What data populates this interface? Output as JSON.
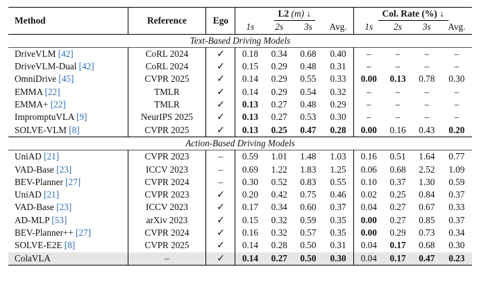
{
  "header": {
    "method": "Method",
    "reference": "Reference",
    "ego": "Ego",
    "l2_label": "L2",
    "l2_unit": "(m)",
    "col_label": "Col. Rate (%)",
    "down_arrow": "↓",
    "sub": [
      "1s",
      "2s",
      "3s",
      "Avg.",
      "1s",
      "2s",
      "3s",
      "Avg."
    ]
  },
  "sections": [
    {
      "title": "Text-Based Driving Models",
      "rows": [
        {
          "method": "DriveVLM",
          "cite": "[42]",
          "ref": "CoRL 2024",
          "ego": "✓",
          "vals": [
            "0.18",
            "0.34",
            "0.68",
            "0.40",
            "–",
            "–",
            "–",
            "–"
          ],
          "bold": []
        },
        {
          "method": "DriveVLM-Dual",
          "cite": "[42]",
          "ref": "CoRL 2024",
          "ego": "✓",
          "vals": [
            "0.15",
            "0.29",
            "0.48",
            "0.31",
            "–",
            "–",
            "–",
            "–"
          ],
          "bold": []
        },
        {
          "method": "OmniDrive",
          "cite": "[45]",
          "ref": "CVPR 2025",
          "ego": "✓",
          "vals": [
            "0.14",
            "0.29",
            "0.55",
            "0.33",
            "0.00",
            "0.13",
            "0.78",
            "0.30"
          ],
          "bold": [
            4,
            5
          ]
        },
        {
          "method": "EMMA",
          "cite": "[22]",
          "ref": "TMLR",
          "ego": "✓",
          "vals": [
            "0.14",
            "0.29",
            "0.54",
            "0.32",
            "–",
            "–",
            "–",
            "–"
          ],
          "bold": []
        },
        {
          "method": "EMMA+",
          "cite": "[22]",
          "ref": "TMLR",
          "ego": "✓",
          "vals": [
            "0.13",
            "0.27",
            "0.48",
            "0.29",
            "–",
            "–",
            "–",
            "–"
          ],
          "bold": [
            0
          ]
        },
        {
          "method": "ImpromptuVLA",
          "cite": "[9]",
          "ref": "NeurIPS 2025",
          "ego": "✓",
          "vals": [
            "0.13",
            "0.27",
            "0.53",
            "0.30",
            "–",
            "–",
            "–",
            "–"
          ],
          "bold": [
            0
          ]
        },
        {
          "method": "SOLVE-VLM",
          "cite": "[8]",
          "ref": "CVPR 2025",
          "ego": "✓",
          "vals": [
            "0.13",
            "0.25",
            "0.47",
            "0.28",
            "0.00",
            "0.16",
            "0.43",
            "0.20"
          ],
          "bold": [
            0,
            1,
            2,
            3,
            4,
            7
          ]
        }
      ]
    },
    {
      "title": "Action-Based Driving Models",
      "rows": [
        {
          "method": "UniAD",
          "cite": "[21]",
          "ref": "CVPR 2023",
          "ego": "–",
          "vals": [
            "0.59",
            "1.01",
            "1.48",
            "1.03",
            "0.16",
            "0.51",
            "1.64",
            "0.77"
          ],
          "bold": []
        },
        {
          "method": "VAD-Base",
          "cite": "[23]",
          "ref": "ICCV 2023",
          "ego": "–",
          "vals": [
            "0.69",
            "1.22",
            "1.83",
            "1.25",
            "0.06",
            "0.68",
            "2.52",
            "1.09"
          ],
          "bold": []
        },
        {
          "method": "BEV-Planner",
          "cite": "[27]",
          "ref": "CVPR 2024",
          "ego": "–",
          "vals": [
            "0.30",
            "0.52",
            "0.83",
            "0.55",
            "0.10",
            "0.37",
            "1.30",
            "0.59"
          ],
          "bold": []
        },
        {
          "method": "UniAD",
          "cite": "[21]",
          "ref": "CVPR 2023",
          "ego": "✓",
          "vals": [
            "0.20",
            "0.42",
            "0.75",
            "0.46",
            "0.02",
            "0.25",
            "0.84",
            "0.37"
          ],
          "bold": []
        },
        {
          "method": "VAD-Base",
          "cite": "[23]",
          "ref": "ICCV 2023",
          "ego": "✓",
          "vals": [
            "0.17",
            "0.34",
            "0.60",
            "0.37",
            "0.04",
            "0.27",
            "0.67",
            "0.33"
          ],
          "bold": []
        },
        {
          "method": "AD-MLP",
          "cite": "[53]",
          "ref": "arXiv 2023",
          "ego": "✓",
          "vals": [
            "0.15",
            "0.32",
            "0.59",
            "0.35",
            "0.00",
            "0.27",
            "0.85",
            "0.37"
          ],
          "bold": [
            4
          ]
        },
        {
          "method": "BEV-Planner++",
          "cite": "[27]",
          "ref": "CVPR 2024",
          "ego": "✓",
          "vals": [
            "0.16",
            "0.32",
            "0.57",
            "0.35",
            "0.00",
            "0.29",
            "0.73",
            "0.34"
          ],
          "bold": [
            4
          ]
        },
        {
          "method": "SOLVE-E2E",
          "cite": "[8]",
          "ref": "CVPR 2025",
          "ego": "✓",
          "vals": [
            "0.14",
            "0.28",
            "0.50",
            "0.31",
            "0.04",
            "0.17",
            "0.68",
            "0.30"
          ],
          "bold": [
            5
          ]
        },
        {
          "method": "ColaVLA",
          "cite": "",
          "ref": "–",
          "ego": "✓",
          "vals": [
            "0.14",
            "0.27",
            "0.50",
            "0.30",
            "0.04",
            "0.17",
            "0.47",
            "0.23"
          ],
          "bold": [
            0,
            1,
            2,
            3,
            5,
            6,
            7
          ],
          "highlight": true
        }
      ]
    }
  ]
}
